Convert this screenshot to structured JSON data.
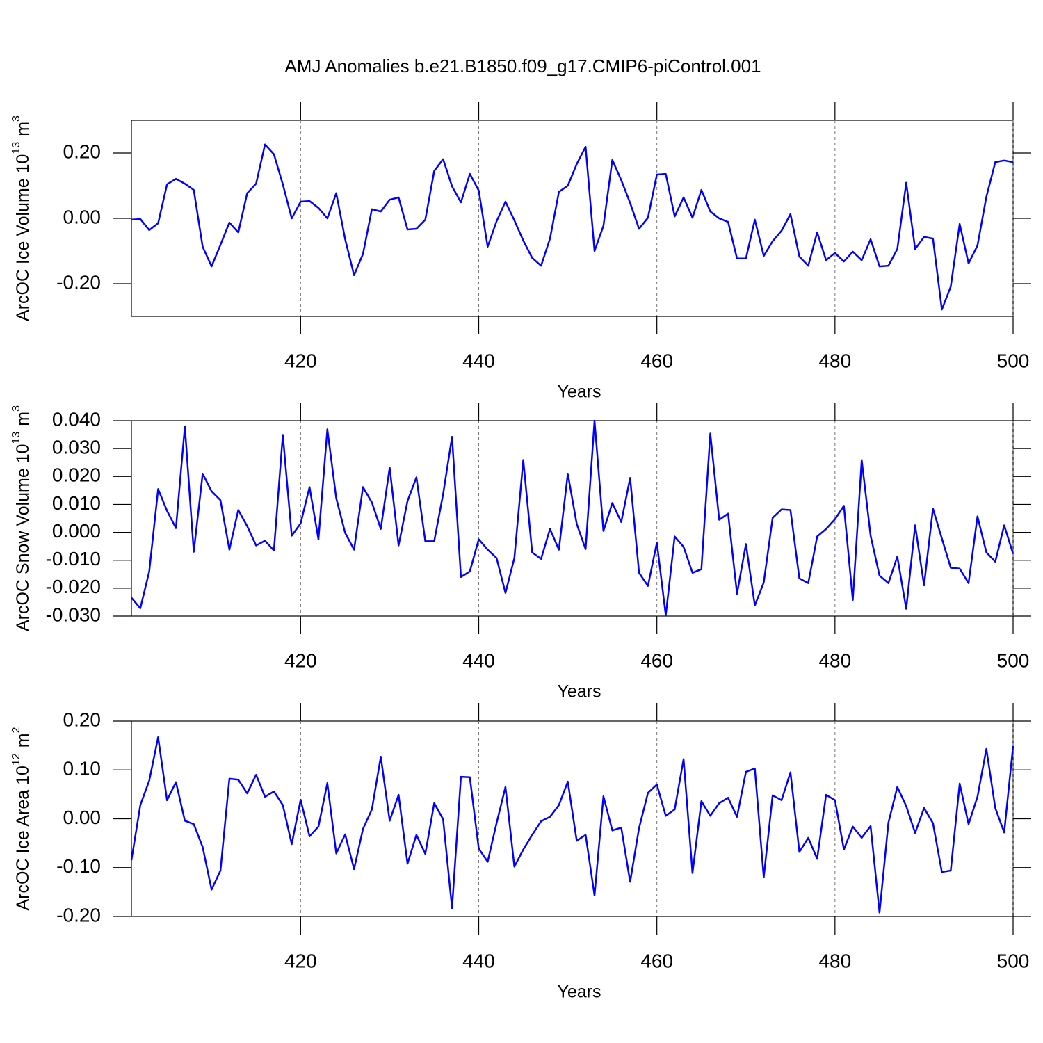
{
  "title": "AMJ Anomalies b.e21.B1850.f09_g17.CMIP6-piControl.001",
  "chart_data": [
    {
      "type": "line",
      "ylabel": [
        "ArcOC Ice Volume 10",
        "13",
        "m",
        "3"
      ],
      "xlabel": "Years",
      "color": "#0000ff",
      "xgrid": true,
      "xlim": [
        401,
        500
      ],
      "xticks": [
        420,
        440,
        460,
        480,
        500
      ],
      "ylim": [
        -0.3,
        0.3
      ],
      "yticks": [
        {
          "value": -0.2,
          "label": "-0.20"
        },
        {
          "value": 0,
          "label": "0.00"
        },
        {
          "value": 0.2,
          "label": "0.20"
        }
      ],
      "x": [
        401,
        402,
        403,
        404,
        405,
        406,
        407,
        408,
        409,
        410,
        411,
        412,
        413,
        414,
        415,
        416,
        417,
        418,
        419,
        420,
        421,
        422,
        423,
        424,
        425,
        426,
        427,
        428,
        429,
        430,
        431,
        432,
        433,
        434,
        435,
        436,
        437,
        438,
        439,
        440,
        441,
        442,
        443,
        444,
        445,
        446,
        447,
        448,
        449,
        450,
        451,
        452,
        453,
        454,
        455,
        456,
        457,
        458,
        459,
        460,
        461,
        462,
        463,
        464,
        465,
        466,
        467,
        468,
        469,
        470,
        471,
        472,
        473,
        474,
        475,
        476,
        477,
        478,
        479,
        480,
        481,
        482,
        483,
        484,
        485,
        486,
        487,
        488,
        489,
        490,
        491,
        492,
        493,
        494,
        495,
        496,
        497,
        498,
        499,
        500
      ],
      "values": [
        -0.004,
        -0.002,
        -0.036,
        -0.015,
        0.104,
        0.121,
        0.106,
        0.087,
        -0.087,
        -0.147,
        -0.081,
        -0.013,
        -0.043,
        0.077,
        0.106,
        0.226,
        0.196,
        0.104,
        0.0,
        0.051,
        0.053,
        0.032,
        0.0,
        0.077,
        -0.064,
        -0.174,
        -0.109,
        0.028,
        0.021,
        0.057,
        0.064,
        -0.034,
        -0.032,
        -0.004,
        0.145,
        0.181,
        0.098,
        0.049,
        0.136,
        0.085,
        -0.087,
        -0.009,
        0.051,
        -0.006,
        -0.068,
        -0.121,
        -0.145,
        -0.062,
        0.081,
        0.1,
        0.166,
        0.219,
        -0.1,
        -0.023,
        0.179,
        0.117,
        0.047,
        -0.032,
        0.002,
        0.134,
        0.136,
        0.006,
        0.064,
        0.002,
        0.087,
        0.021,
        0.0,
        -0.011,
        -0.123,
        -0.123,
        -0.004,
        -0.115,
        -0.07,
        -0.038,
        0.013,
        -0.117,
        -0.145,
        -0.043,
        -0.128,
        -0.106,
        -0.132,
        -0.102,
        -0.128,
        -0.064,
        -0.147,
        -0.145,
        -0.094,
        0.109,
        -0.094,
        -0.057,
        -0.062,
        -0.279,
        -0.209,
        -0.017,
        -0.138,
        -0.083,
        0.066,
        0.172,
        0.177,
        0.172
      ]
    },
    {
      "type": "line",
      "ylabel": [
        "ArcOC Snow Volume 10",
        "13",
        "m",
        "3"
      ],
      "xlabel": "Years",
      "color": "#0000ff",
      "xgrid": true,
      "xlim": [
        401,
        500
      ],
      "xticks": [
        420,
        440,
        460,
        480,
        500
      ],
      "ylim": [
        -0.03,
        0.04
      ],
      "yticks": [
        {
          "value": -0.03,
          "label": "-0.030"
        },
        {
          "value": -0.02,
          "label": "-0.020"
        },
        {
          "value": -0.01,
          "label": "-0.010"
        },
        {
          "value": 0,
          "label": "0.000"
        },
        {
          "value": 0.01,
          "label": "0.010"
        },
        {
          "value": 0.02,
          "label": "0.020"
        },
        {
          "value": 0.03,
          "label": "0.030"
        },
        {
          "value": 0.04,
          "label": "0.040"
        }
      ],
      "x": [
        401,
        402,
        403,
        404,
        405,
        406,
        407,
        408,
        409,
        410,
        411,
        412,
        413,
        414,
        415,
        416,
        417,
        418,
        419,
        420,
        421,
        422,
        423,
        424,
        425,
        426,
        427,
        428,
        429,
        430,
        431,
        432,
        433,
        434,
        435,
        436,
        437,
        438,
        439,
        440,
        441,
        442,
        443,
        444,
        445,
        446,
        447,
        448,
        449,
        450,
        451,
        452,
        453,
        454,
        455,
        456,
        457,
        458,
        459,
        460,
        461,
        462,
        463,
        464,
        465,
        466,
        467,
        468,
        469,
        470,
        471,
        472,
        473,
        474,
        475,
        476,
        477,
        478,
        479,
        480,
        481,
        482,
        483,
        484,
        485,
        486,
        487,
        488,
        489,
        490,
        491,
        492,
        493,
        494,
        495,
        496,
        497,
        498,
        499,
        500
      ],
      "values": [
        -0.0234,
        -0.0272,
        -0.014,
        0.0155,
        0.0077,
        0.0015,
        0.0379,
        -0.007,
        0.021,
        0.0147,
        0.0115,
        -0.0062,
        0.008,
        0.0022,
        -0.0047,
        -0.003,
        -0.0065,
        0.0349,
        -0.0012,
        0.0032,
        0.0162,
        -0.0025,
        0.0369,
        0.0122,
        -0.0002,
        -0.0062,
        0.0162,
        0.0107,
        0.0012,
        0.0232,
        -0.0047,
        0.0112,
        0.0197,
        -0.0032,
        -0.0032,
        0.0137,
        0.0342,
        -0.016,
        -0.014,
        -0.0025,
        -0.0062,
        -0.0092,
        -0.0217,
        -0.0092,
        0.0259,
        -0.0072,
        -0.0095,
        0.0012,
        -0.0062,
        0.021,
        0.003,
        -0.006,
        0.04,
        0.0005,
        0.0105,
        0.0037,
        0.0195,
        -0.0145,
        -0.0192,
        -0.0037,
        -0.0297,
        -0.0015,
        -0.0052,
        -0.0145,
        -0.0132,
        0.0354,
        0.0045,
        0.0067,
        -0.022,
        -0.0042,
        -0.0262,
        -0.018,
        0.0052,
        0.0082,
        0.008,
        -0.0165,
        -0.0182,
        -0.0015,
        0.0012,
        0.0047,
        0.0095,
        -0.0242,
        0.0259,
        -0.0012,
        -0.0155,
        -0.0182,
        -0.0087,
        -0.0274,
        0.0025,
        -0.019,
        0.0085,
        -0.0022,
        -0.0127,
        -0.013,
        -0.0182,
        0.0057,
        -0.0072,
        -0.0105,
        0.0025,
        -0.0077
      ]
    },
    {
      "type": "line",
      "ylabel": [
        "ArcOC Ice Area 10",
        "12",
        "m",
        "2"
      ],
      "xlabel": "Years",
      "color": "#0000ff",
      "xgrid": true,
      "xlim": [
        401,
        500
      ],
      "xticks": [
        420,
        440,
        460,
        480,
        500
      ],
      "ylim": [
        -0.2,
        0.2
      ],
      "yticks": [
        {
          "value": -0.2,
          "label": "-0.20"
        },
        {
          "value": -0.1,
          "label": "-0.10"
        },
        {
          "value": 0,
          "label": "0.00"
        },
        {
          "value": 0.1,
          "label": "0.10"
        },
        {
          "value": 0.2,
          "label": "0.20"
        }
      ],
      "x": [
        401,
        402,
        403,
        404,
        405,
        406,
        407,
        408,
        409,
        410,
        411,
        412,
        413,
        414,
        415,
        416,
        417,
        418,
        419,
        420,
        421,
        422,
        423,
        424,
        425,
        426,
        427,
        428,
        429,
        430,
        431,
        432,
        433,
        434,
        435,
        436,
        437,
        438,
        439,
        440,
        441,
        442,
        443,
        444,
        445,
        446,
        447,
        448,
        449,
        450,
        451,
        452,
        453,
        454,
        455,
        456,
        457,
        458,
        459,
        460,
        461,
        462,
        463,
        464,
        465,
        466,
        467,
        468,
        469,
        470,
        471,
        472,
        473,
        474,
        475,
        476,
        477,
        478,
        479,
        480,
        481,
        482,
        483,
        484,
        485,
        486,
        487,
        488,
        489,
        490,
        491,
        492,
        493,
        494,
        495,
        496,
        497,
        498,
        499,
        500
      ],
      "values": [
        -0.085,
        0.028,
        0.078,
        0.167,
        0.038,
        0.075,
        -0.004,
        -0.011,
        -0.058,
        -0.145,
        -0.106,
        0.082,
        0.08,
        0.052,
        0.09,
        0.045,
        0.056,
        0.028,
        -0.052,
        0.039,
        -0.036,
        -0.016,
        0.073,
        -0.071,
        -0.032,
        -0.103,
        -0.021,
        0.019,
        0.127,
        -0.004,
        0.049,
        -0.092,
        -0.033,
        -0.072,
        0.032,
        -0.001,
        -0.183,
        0.086,
        0.085,
        -0.061,
        -0.088,
        -0.009,
        0.065,
        -0.098,
        -0.063,
        -0.033,
        -0.005,
        0.004,
        0.028,
        0.076,
        -0.045,
        -0.033,
        -0.157,
        0.046,
        -0.024,
        -0.018,
        -0.129,
        -0.019,
        0.053,
        0.07,
        0.006,
        0.019,
        0.122,
        -0.111,
        0.036,
        0.006,
        0.032,
        0.043,
        0.004,
        0.096,
        0.103,
        -0.12,
        0.048,
        0.038,
        0.095,
        -0.068,
        -0.039,
        -0.082,
        0.049,
        0.038,
        -0.063,
        -0.016,
        -0.039,
        -0.015,
        -0.192,
        -0.008,
        0.065,
        0.026,
        -0.029,
        0.022,
        -0.009,
        -0.109,
        -0.106,
        0.072,
        -0.011,
        0.045,
        0.143,
        0.022,
        -0.028,
        0.149
      ]
    }
  ]
}
